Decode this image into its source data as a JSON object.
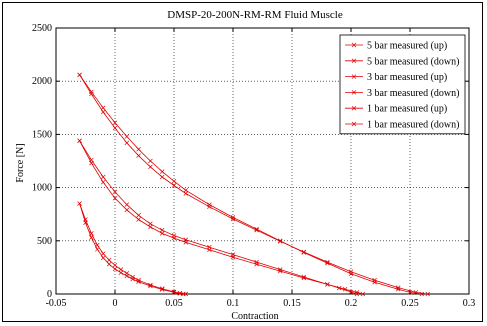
{
  "chart_data": {
    "type": "line",
    "title": "DMSP-20-200N-RM-RM Fluid Muscle",
    "xlabel": "Contraction",
    "ylabel": "Force [N]",
    "xlim": [
      -0.05,
      0.3
    ],
    "ylim": [
      0,
      2500
    ],
    "xticks": [
      -0.05,
      0,
      0.05,
      0.1,
      0.15,
      0.2,
      0.25,
      0.3
    ],
    "yticks": [
      0,
      500,
      1000,
      1500,
      2000,
      2500
    ],
    "xtick_labels": [
      "-0.05",
      "0",
      "0.05",
      "0.1",
      "0.15",
      "0.2",
      "0.25",
      "0.3"
    ],
    "ytick_labels": [
      "0",
      "500",
      "1000",
      "1500",
      "2000",
      "2500"
    ],
    "grid": true,
    "legend_position": "top-right",
    "line_color": "#e00000",
    "series": [
      {
        "name": "5 bar measured (up)",
        "x": [
          -0.03,
          -0.02,
          -0.01,
          0.0,
          0.01,
          0.02,
          0.03,
          0.04,
          0.05,
          0.06,
          0.08,
          0.1,
          0.12,
          0.14,
          0.16,
          0.18,
          0.2,
          0.22,
          0.24,
          0.25,
          0.26
        ],
        "y": [
          2060,
          1900,
          1750,
          1610,
          1480,
          1360,
          1250,
          1150,
          1060,
          975,
          840,
          720,
          610,
          500,
          390,
          290,
          190,
          110,
          45,
          15,
          0
        ]
      },
      {
        "name": "5 bar measured (down)",
        "x": [
          -0.03,
          -0.02,
          -0.01,
          0.0,
          0.01,
          0.02,
          0.03,
          0.04,
          0.05,
          0.06,
          0.08,
          0.1,
          0.12,
          0.14,
          0.16,
          0.18,
          0.2,
          0.22,
          0.24,
          0.255,
          0.265
        ],
        "y": [
          2060,
          1880,
          1710,
          1560,
          1420,
          1300,
          1195,
          1100,
          1020,
          945,
          820,
          705,
          600,
          495,
          395,
          300,
          210,
          130,
          60,
          15,
          0
        ]
      },
      {
        "name": "3 bar measured (up)",
        "x": [
          -0.03,
          -0.02,
          -0.01,
          0.0,
          0.01,
          0.02,
          0.03,
          0.04,
          0.05,
          0.06,
          0.08,
          0.1,
          0.12,
          0.14,
          0.16,
          0.18,
          0.19,
          0.2,
          0.205
        ],
        "y": [
          1440,
          1260,
          1100,
          960,
          840,
          740,
          660,
          600,
          550,
          510,
          440,
          370,
          300,
          230,
          160,
          90,
          55,
          20,
          0
        ]
      },
      {
        "name": "3 bar measured (down)",
        "x": [
          -0.03,
          -0.02,
          -0.01,
          0.0,
          0.01,
          0.02,
          0.03,
          0.04,
          0.05,
          0.06,
          0.08,
          0.1,
          0.12,
          0.14,
          0.16,
          0.18,
          0.195,
          0.205,
          0.21
        ],
        "y": [
          1440,
          1230,
          1050,
          900,
          790,
          700,
          630,
          570,
          525,
          485,
          415,
          345,
          280,
          215,
          150,
          90,
          45,
          15,
          0
        ]
      },
      {
        "name": "1 bar measured (up)",
        "x": [
          -0.03,
          -0.025,
          -0.02,
          -0.015,
          -0.01,
          -0.005,
          0.0,
          0.005,
          0.01,
          0.015,
          0.02,
          0.03,
          0.04,
          0.05,
          0.055,
          0.06
        ],
        "y": [
          850,
          700,
          570,
          460,
          380,
          320,
          270,
          230,
          195,
          160,
          130,
          85,
          50,
          20,
          8,
          0
        ]
      },
      {
        "name": "1 bar measured (down)",
        "x": [
          -0.03,
          -0.025,
          -0.02,
          -0.015,
          -0.01,
          -0.005,
          0.0,
          0.005,
          0.01,
          0.015,
          0.02,
          0.03,
          0.04,
          0.05,
          0.055,
          0.058
        ],
        "y": [
          850,
          670,
          530,
          420,
          340,
          280,
          235,
          200,
          170,
          140,
          115,
          75,
          42,
          15,
          5,
          0
        ]
      }
    ]
  }
}
